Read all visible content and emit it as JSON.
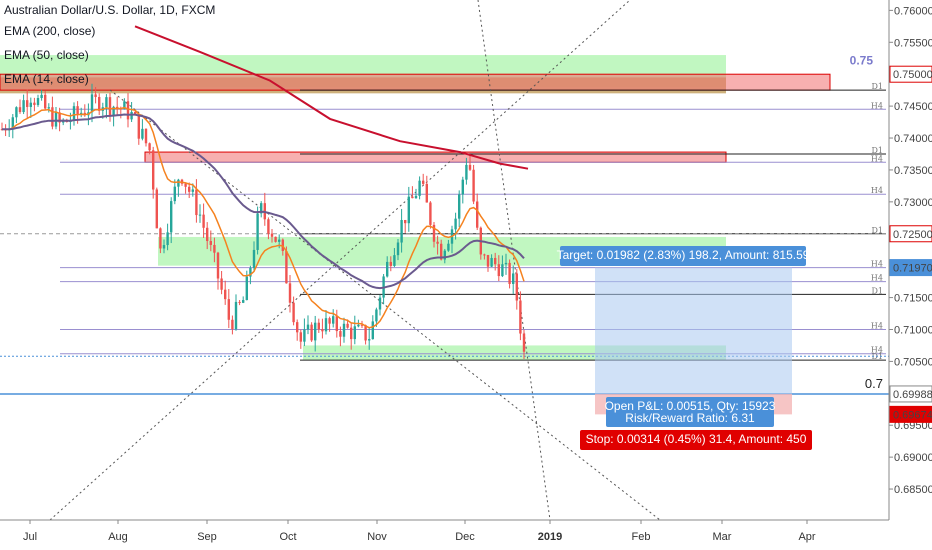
{
  "legend": {
    "title": "Australian Dollar/U.S. Dollar, 1D, FXCM",
    "ema200": "EMA (200, close)",
    "ema50": "EMA (50, close)",
    "ema14": "EMA (14, close)"
  },
  "colors": {
    "up": "#26a69a",
    "down": "#ef5350",
    "ema200": "#c8102e",
    "ema50": "#6a5a8e",
    "ema14": "#f5821f",
    "green_zone": "#8ef08e",
    "red_zone": "#f07070",
    "tan_zone": "#c9a96e",
    "target": "#aac8f0",
    "stop": "#f4b6b6",
    "price_badge": "#ffffff",
    "label_blue": "#4a90d9",
    "label_red": "#e00000"
  },
  "annotations": {
    "round_075": "0.75",
    "round_07": "0.7",
    "target_label": "Target: 0.01982 (2.83%) 198.2, Amount: 815.59",
    "open_pnl_label": "Open P&L: 0.00515, Qty: 15923",
    "rr_label": "Risk/Reward Ratio: 6.31",
    "stop_label": "Stop: 0.00314 (0.45%) 31.4, Amount: 450"
  },
  "level_tags": [
    {
      "price": 0.7475,
      "tag": "D1"
    },
    {
      "price": 0.7445,
      "tag": "H4"
    },
    {
      "price": 0.7375,
      "tag": "D1"
    },
    {
      "price": 0.7362,
      "tag": "H4"
    },
    {
      "price": 0.7312,
      "tag": "H4"
    },
    {
      "price": 0.725,
      "tag": "D1"
    },
    {
      "price": 0.7197,
      "tag": "H4"
    },
    {
      "price": 0.7175,
      "tag": "H4"
    },
    {
      "price": 0.7155,
      "tag": "D1"
    },
    {
      "price": 0.71,
      "tag": "H4"
    },
    {
      "price": 0.7062,
      "tag": "H4"
    },
    {
      "price": 0.7052,
      "tag": "D1"
    }
  ],
  "price_badges": [
    {
      "price": 0.75,
      "label": "0.75000",
      "style": "red"
    },
    {
      "price": 0.725,
      "label": "0.72500",
      "style": "red"
    },
    {
      "price": 0.7197,
      "label": "0.71970",
      "style": "blue"
    },
    {
      "price": 0.6999,
      "label": "0.69988",
      "style": "plain"
    },
    {
      "price": 0.6967,
      "label": "0.69674",
      "style": "solidred"
    }
  ],
  "chart_data": {
    "type": "candlestick",
    "symbol": "AUDUSD",
    "timeframe": "1D",
    "ylim": [
      0.6825,
      0.761
    ],
    "y_ticks": [
      "0.76000",
      "0.75500",
      "0.75000",
      "0.74500",
      "0.74000",
      "0.73500",
      "0.73000",
      "0.72500",
      "0.72000",
      "0.71500",
      "0.71000",
      "0.70500",
      "0.70000",
      "0.69500",
      "0.69000",
      "0.68500"
    ],
    "x_ticks": [
      "Jul",
      "Aug",
      "Sep",
      "Oct",
      "Nov",
      "Dec",
      "2019",
      "Feb",
      "Mar",
      "Apr"
    ],
    "last_price": 0.7052,
    "entry": 0.6999,
    "target": 0.7197,
    "stop": 0.6967,
    "zones": [
      {
        "kind": "green",
        "from": 0.748,
        "to": 0.753
      },
      {
        "kind": "tan",
        "from": 0.747,
        "to": 0.7495
      },
      {
        "kind": "red",
        "from": 0.7475,
        "to": 0.75
      },
      {
        "kind": "red",
        "from": 0.7362,
        "to": 0.7378
      },
      {
        "kind": "green",
        "from": 0.72,
        "to": 0.7245
      },
      {
        "kind": "green",
        "from": 0.7052,
        "to": 0.7075
      }
    ]
  }
}
